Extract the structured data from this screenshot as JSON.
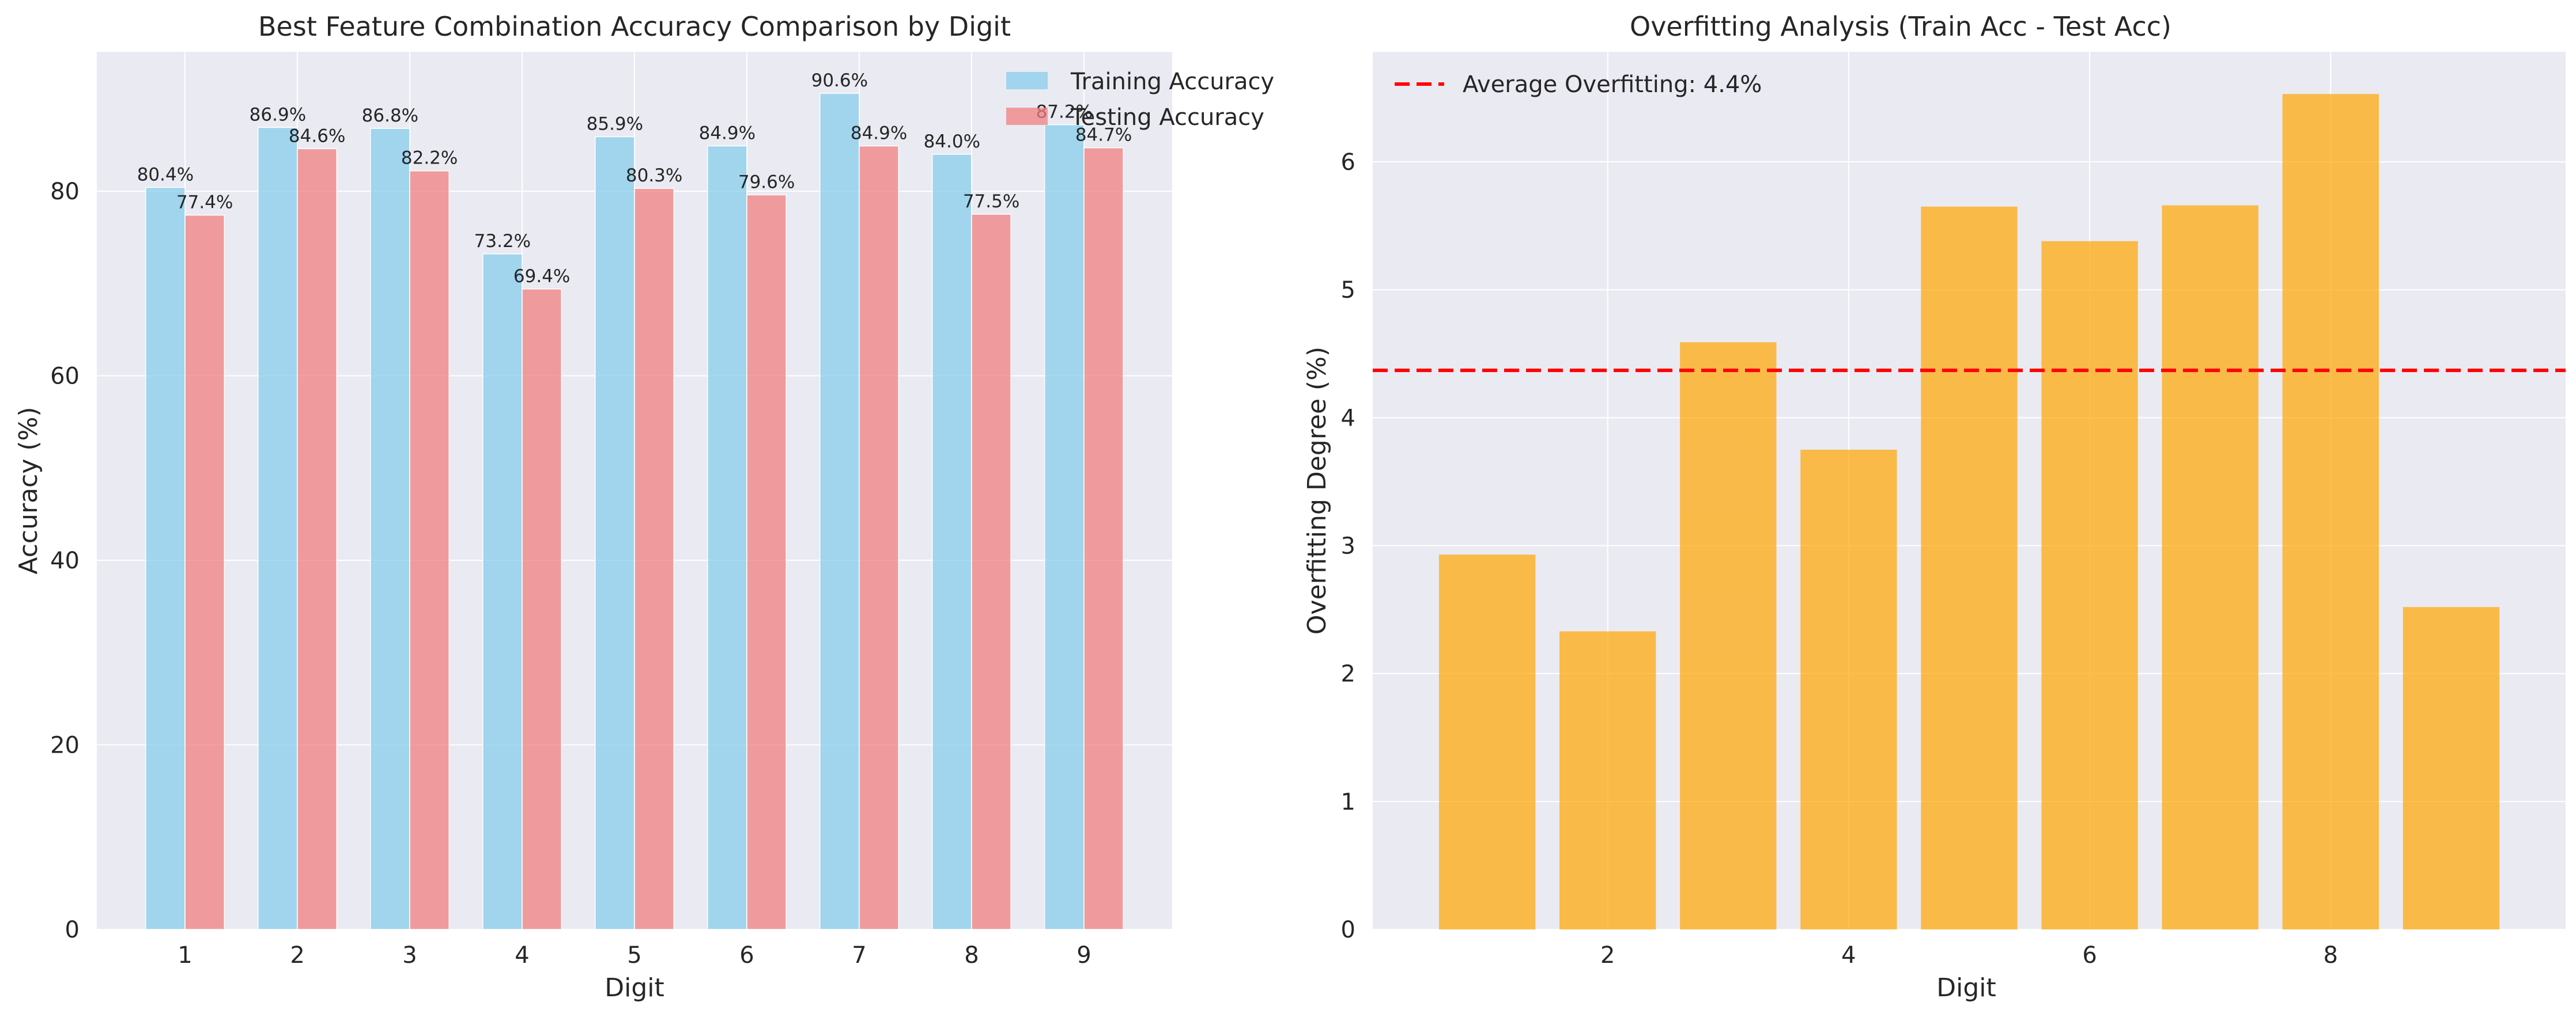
{
  "chart_data": [
    {
      "type": "bar",
      "title": "Best Feature Combination Accuracy Comparison by Digit",
      "xlabel": "Digit",
      "ylabel": "Accuracy (%)",
      "categories": [
        "1",
        "2",
        "3",
        "4",
        "5",
        "6",
        "7",
        "8",
        "9"
      ],
      "ylim": [
        0,
        95.1
      ],
      "yticks": [
        0,
        20,
        40,
        60,
        80
      ],
      "grid": true,
      "legend": "top-right",
      "value_labels": true,
      "series": [
        {
          "name": "Training Accuracy",
          "color": "#87ceeb",
          "values": [
            80.4,
            86.9,
            86.8,
            73.2,
            85.9,
            84.9,
            90.6,
            84.0,
            87.2
          ],
          "labels": [
            "80.4%",
            "86.9%",
            "86.8%",
            "73.2%",
            "85.9%",
            "84.9%",
            "90.6%",
            "84.0%",
            "87.2%"
          ]
        },
        {
          "name": "Testing Accuracy",
          "color": "#f08080",
          "values": [
            77.4,
            84.6,
            82.2,
            69.4,
            80.3,
            79.6,
            84.9,
            77.5,
            84.7
          ],
          "labels": [
            "77.4%",
            "84.6%",
            "82.2%",
            "69.4%",
            "80.3%",
            "79.6%",
            "84.9%",
            "77.5%",
            "84.7%"
          ]
        }
      ]
    },
    {
      "type": "bar",
      "title": "Overfitting Analysis (Train Acc - Test Acc)",
      "xlabel": "Digit",
      "ylabel": "Overfitting Degree (%)",
      "x": [
        1,
        2,
        3,
        4,
        5,
        6,
        7,
        8,
        9
      ],
      "values": [
        2.93,
        2.33,
        4.59,
        3.75,
        5.65,
        5.38,
        5.66,
        6.53,
        2.52
      ],
      "bar_color": "#ffa500",
      "xlim": [
        0.05,
        9.95
      ],
      "xticks": [
        2,
        4,
        6,
        8
      ],
      "ylim": [
        0,
        6.86
      ],
      "yticks": [
        0,
        1,
        2,
        3,
        4,
        5,
        6
      ],
      "grid": true,
      "legend": "top-left",
      "reference_line": {
        "label": "Average Overfitting: 4.4%",
        "value": 4.37,
        "color": "#ff0000",
        "style": "dashed"
      }
    }
  ]
}
